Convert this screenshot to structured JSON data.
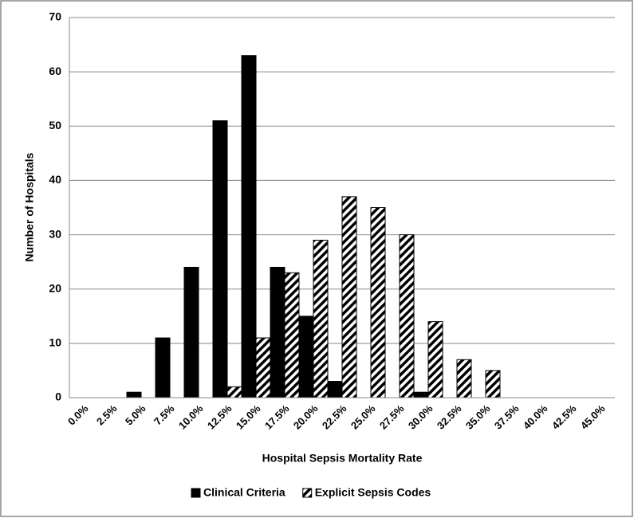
{
  "chart_data": {
    "type": "bar",
    "x_label": "Hospital Sepsis Mortality Rate",
    "y_label": "Number of Hospitals",
    "categories": [
      "0.0%",
      "2.5%",
      "5.0%",
      "7.5%",
      "10.0%",
      "12.5%",
      "15.0%",
      "17.5%",
      "20.0%",
      "22.5%",
      "25.0%",
      "27.5%",
      "30.0%",
      "32.5%",
      "35.0%",
      "37.5%",
      "40.0%",
      "42.5%",
      "45.0%"
    ],
    "series": [
      {
        "name": "Clinical Criteria",
        "color": "#000000",
        "pattern": "solid",
        "values": [
          0,
          0,
          1,
          11,
          24,
          51,
          63,
          24,
          15,
          3,
          0,
          0,
          1,
          0,
          0,
          0,
          0,
          0,
          0
        ]
      },
      {
        "name": "Explicit Sepsis Codes",
        "color": "#000000",
        "pattern": "diagonal-stripes",
        "values": [
          0,
          0,
          0,
          0,
          0,
          2,
          11,
          23,
          29,
          37,
          35,
          30,
          14,
          7,
          5,
          0,
          0,
          0,
          0
        ]
      }
    ],
    "ylim": [
      0,
      70
    ],
    "yticks": [
      0,
      10,
      20,
      30,
      40,
      50,
      60,
      70
    ],
    "grid": true,
    "legend": "bottom"
  }
}
